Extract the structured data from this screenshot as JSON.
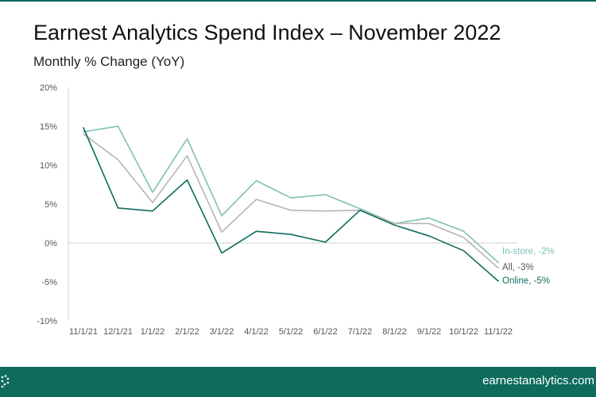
{
  "header": {
    "title": "Earnest Analytics Spend Index – November 2022",
    "subtitle": "Monthly % Change (YoY)"
  },
  "footer": {
    "url": "earnestanalytics.com",
    "background": "#0e6b5e"
  },
  "chart_data": {
    "type": "line",
    "categories": [
      "11/1/21",
      "12/1/21",
      "1/1/22",
      "2/1/22",
      "3/1/22",
      "4/1/22",
      "5/1/22",
      "6/1/22",
      "7/1/22",
      "8/1/22",
      "9/1/22",
      "10/1/22",
      "11/1/22"
    ],
    "ylim": [
      -10,
      20
    ],
    "yticks": [
      -10,
      -5,
      0,
      5,
      10,
      15,
      20
    ],
    "ytick_labels": [
      "-10%",
      "-5%",
      "0%",
      "5%",
      "10%",
      "15%",
      "20%"
    ],
    "grid": false,
    "zero_line": true,
    "series": [
      {
        "name": "In-store",
        "label": "In-store, -2%",
        "color": "#7fbfb5",
        "values": [
          14.3,
          15.0,
          6.5,
          13.4,
          3.5,
          8.0,
          5.8,
          6.2,
          4.4,
          2.5,
          3.2,
          1.5,
          -2.5
        ]
      },
      {
        "name": "All",
        "label": "All, -3%",
        "color": "#b5b5b5",
        "values": [
          14.0,
          10.7,
          5.2,
          11.2,
          1.4,
          5.6,
          4.2,
          4.1,
          4.2,
          2.5,
          2.5,
          0.7,
          -3.2
        ]
      },
      {
        "name": "Online",
        "label": "Online, -5%",
        "color": "#0e6b5e",
        "values": [
          14.8,
          4.5,
          4.1,
          8.1,
          -1.3,
          1.5,
          1.1,
          0.1,
          4.2,
          2.3,
          0.9,
          -1.0,
          -4.9
        ]
      }
    ]
  }
}
